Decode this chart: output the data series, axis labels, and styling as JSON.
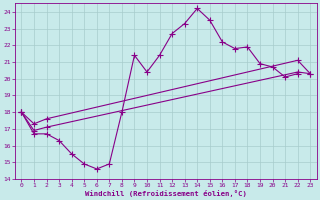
{
  "xlabel": "Windchill (Refroidissement éolien,°C)",
  "xlim": [
    -0.5,
    23.5
  ],
  "ylim": [
    14,
    24.5
  ],
  "yticks": [
    14,
    15,
    16,
    17,
    18,
    19,
    20,
    21,
    22,
    23,
    24
  ],
  "xticks": [
    0,
    1,
    2,
    3,
    4,
    5,
    6,
    7,
    8,
    9,
    10,
    11,
    12,
    13,
    14,
    15,
    16,
    17,
    18,
    19,
    20,
    21,
    22,
    23
  ],
  "bg_color": "#c8eaea",
  "grid_color": "#a8cccc",
  "line_color": "#880088",
  "line1_x": [
    0,
    1,
    2,
    3,
    4,
    5,
    6,
    7,
    8,
    9,
    10,
    11,
    12,
    13,
    14,
    15,
    16,
    17,
    18,
    19,
    20,
    21,
    22
  ],
  "line1_y": [
    18.0,
    16.7,
    16.7,
    16.3,
    15.5,
    14.9,
    14.6,
    14.9,
    18.0,
    21.4,
    20.4,
    21.4,
    22.7,
    23.3,
    24.2,
    23.5,
    22.2,
    21.8,
    21.9,
    20.9,
    20.7,
    20.1,
    20.3
  ],
  "line2_x": [
    0,
    1,
    2,
    22,
    23
  ],
  "line2_y": [
    18.0,
    16.9,
    17.1,
    20.4,
    20.3
  ],
  "line3_x": [
    0,
    1,
    2,
    22,
    23
  ],
  "line3_y": [
    18.0,
    17.3,
    17.6,
    21.1,
    20.3
  ],
  "lw": 0.8,
  "ms": 2.5
}
